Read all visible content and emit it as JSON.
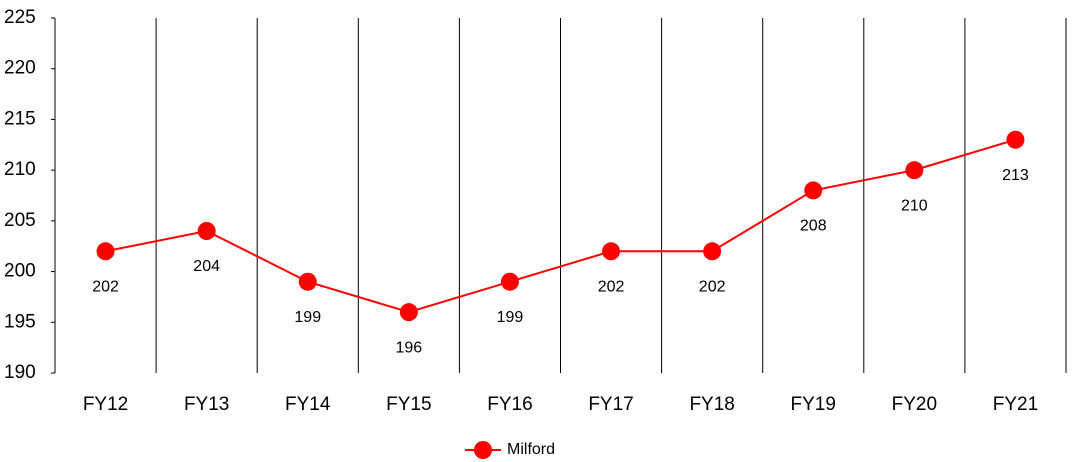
{
  "chart_data": {
    "type": "line",
    "categories": [
      "FY12",
      "FY13",
      "FY14",
      "FY15",
      "FY16",
      "FY17",
      "FY18",
      "FY19",
      "FY20",
      "FY21"
    ],
    "series": [
      {
        "name": "Milford",
        "color": "#ff0000",
        "values": [
          202,
          204,
          199,
          196,
          199,
          202,
          202,
          208,
          210,
          213
        ]
      }
    ],
    "ylim": [
      190,
      225
    ],
    "yticks": [
      190,
      195,
      200,
      205,
      210,
      215,
      220,
      225
    ],
    "legend": "bottom",
    "grid": false
  }
}
